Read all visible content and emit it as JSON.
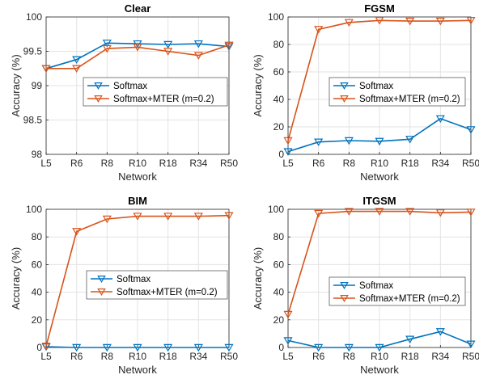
{
  "chart_data": [
    {
      "type": "line",
      "title": "Clear",
      "xlabel": "Network",
      "ylabel": "Accuracy (%)",
      "categories": [
        "L5",
        "R6",
        "R8",
        "R10",
        "R18",
        "R34",
        "R50"
      ],
      "ylim": [
        98,
        100
      ],
      "yticks": [
        98,
        98.5,
        99,
        99.5,
        100
      ],
      "ytick_labels": [
        "98",
        "98.5",
        "99",
        "99.5",
        "100"
      ],
      "grid": true,
      "legend_position": "center-right",
      "series": [
        {
          "name": "Softmax",
          "color": "#0072BD",
          "marker": "triangle-down",
          "values": [
            99.25,
            99.38,
            99.62,
            99.61,
            99.6,
            99.61,
            99.57
          ]
        },
        {
          "name": "Softmax+MTER (m=0.2)",
          "color": "#D95319",
          "marker": "triangle-down",
          "values": [
            99.25,
            99.25,
            99.54,
            99.56,
            99.5,
            99.44,
            99.59
          ]
        }
      ]
    },
    {
      "type": "line",
      "title": "FGSM",
      "xlabel": "Network",
      "ylabel": "Accuracy (%)",
      "categories": [
        "L5",
        "R6",
        "R8",
        "R10",
        "R18",
        "R34",
        "R50"
      ],
      "ylim": [
        0,
        100
      ],
      "yticks": [
        0,
        20,
        40,
        60,
        80,
        100
      ],
      "ytick_labels": [
        "0",
        "20",
        "40",
        "60",
        "80",
        "100"
      ],
      "grid": true,
      "legend_position": "center-right",
      "series": [
        {
          "name": "Softmax",
          "color": "#0072BD",
          "marker": "triangle-down",
          "values": [
            2,
            9,
            10,
            9.5,
            11,
            26,
            18
          ]
        },
        {
          "name": "Softmax+MTER (m=0.2)",
          "color": "#D95319",
          "marker": "triangle-down",
          "values": [
            10,
            91,
            96,
            97.5,
            97,
            97,
            97.5
          ]
        }
      ]
    },
    {
      "type": "line",
      "title": "BIM",
      "xlabel": "Network",
      "ylabel": "Accuracy (%)",
      "categories": [
        "L5",
        "R6",
        "R8",
        "R10",
        "R18",
        "R34",
        "R50"
      ],
      "ylim": [
        0,
        100
      ],
      "yticks": [
        0,
        20,
        40,
        60,
        80,
        100
      ],
      "ytick_labels": [
        "0",
        "20",
        "40",
        "60",
        "80",
        "100"
      ],
      "grid": true,
      "legend_position": "center-right",
      "series": [
        {
          "name": "Softmax",
          "color": "#0072BD",
          "marker": "triangle-down",
          "values": [
            0.5,
            0,
            0,
            0,
            0,
            0,
            0
          ]
        },
        {
          "name": "Softmax+MTER (m=0.2)",
          "color": "#D95319",
          "marker": "triangle-down",
          "values": [
            1,
            84,
            93,
            95,
            95,
            95,
            95.5
          ]
        }
      ]
    },
    {
      "type": "line",
      "title": "ITGSM",
      "xlabel": "Network",
      "ylabel": "Accuracy (%)",
      "categories": [
        "L5",
        "R6",
        "R8",
        "R10",
        "R18",
        "R34",
        "R50"
      ],
      "ylim": [
        0,
        100
      ],
      "yticks": [
        0,
        20,
        40,
        60,
        80,
        100
      ],
      "ytick_labels": [
        "0",
        "20",
        "40",
        "60",
        "80",
        "100"
      ],
      "grid": true,
      "legend_position": "center-right",
      "series": [
        {
          "name": "Softmax",
          "color": "#0072BD",
          "marker": "triangle-down",
          "values": [
            5,
            0,
            0,
            0,
            6,
            11.5,
            2.5
          ]
        },
        {
          "name": "Softmax+MTER (m=0.2)",
          "color": "#D95319",
          "marker": "triangle-down",
          "values": [
            24,
            97,
            98.5,
            98.5,
            98.5,
            97.5,
            98
          ]
        }
      ]
    }
  ]
}
